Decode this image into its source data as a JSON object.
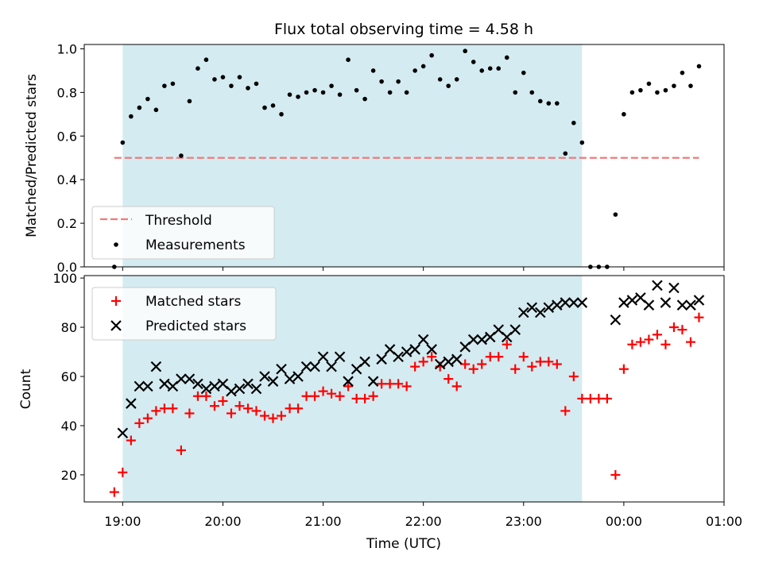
{
  "title": "Flux total observing time = 4.58 h",
  "colors": {
    "shade": "#d4ebf1",
    "threshold": "#f27a7a",
    "measurement": "#000000",
    "matched": "#ff0000",
    "predicted": "#000000"
  },
  "legend_top": {
    "threshold": "Threshold",
    "measurements": "Measurements"
  },
  "legend_bottom": {
    "matched": "Matched stars",
    "predicted": "Predicted stars"
  },
  "chart_data": [
    {
      "type": "scatter",
      "ylabel": "Matched/Predicted stars",
      "ylim": [
        0,
        1.02
      ],
      "yticks": [
        0.0,
        0.2,
        0.4,
        0.6,
        0.8,
        1.0
      ],
      "yticklabels": [
        "0.0",
        "0.2",
        "0.4",
        "0.6",
        "0.8",
        "1.0"
      ],
      "shaded_span": [
        "19:00",
        "23:35"
      ],
      "threshold": {
        "value": 0.5,
        "x_range": [
          "18:55",
          "00:45"
        ]
      },
      "legend_position": "lower-left",
      "series": [
        {
          "name": "Measurements",
          "marker": "dot",
          "x": [
            "18:55",
            "19:00",
            "19:05",
            "19:10",
            "19:15",
            "19:20",
            "19:25",
            "19:30",
            "19:35",
            "19:40",
            "19:45",
            "19:50",
            "19:55",
            "20:00",
            "20:05",
            "20:10",
            "20:15",
            "20:20",
            "20:25",
            "20:30",
            "20:35",
            "20:40",
            "20:45",
            "20:50",
            "20:55",
            "21:00",
            "21:05",
            "21:10",
            "21:15",
            "21:20",
            "21:25",
            "21:30",
            "21:35",
            "21:40",
            "21:45",
            "21:50",
            "21:55",
            "22:00",
            "22:05",
            "22:10",
            "22:15",
            "22:20",
            "22:25",
            "22:30",
            "22:35",
            "22:40",
            "22:45",
            "22:50",
            "22:55",
            "23:00",
            "23:05",
            "23:10",
            "23:15",
            "23:20",
            "23:25",
            "23:30",
            "23:35",
            "23:40",
            "23:45",
            "23:50",
            "23:55",
            "00:00",
            "00:05",
            "00:10",
            "00:15",
            "00:20",
            "00:25",
            "00:30",
            "00:35",
            "00:40",
            "00:45"
          ],
          "y": [
            0.0,
            0.57,
            0.69,
            0.73,
            0.77,
            0.72,
            0.83,
            0.84,
            0.51,
            0.76,
            0.91,
            0.95,
            0.86,
            0.87,
            0.83,
            0.87,
            0.82,
            0.84,
            0.73,
            0.74,
            0.7,
            0.79,
            0.78,
            0.8,
            0.81,
            0.8,
            0.83,
            0.79,
            0.95,
            0.81,
            0.77,
            0.9,
            0.85,
            0.8,
            0.85,
            0.8,
            0.9,
            0.92,
            0.97,
            0.86,
            0.83,
            0.86,
            0.99,
            0.94,
            0.9,
            0.91,
            0.91,
            0.96,
            0.8,
            0.89,
            0.8,
            0.76,
            0.75,
            0.75,
            0.52,
            0.66,
            0.57,
            0.0,
            0.0,
            0.0,
            0.24,
            0.7,
            0.8,
            0.81,
            0.84,
            0.8,
            0.81,
            0.83,
            0.89,
            0.83,
            0.92
          ]
        }
      ]
    },
    {
      "type": "scatter",
      "xlabel": "Time (UTC)",
      "ylabel": "Count",
      "ylim": [
        9,
        101
      ],
      "yticks": [
        20,
        40,
        60,
        80,
        100
      ],
      "yticklabels": [
        "20",
        "40",
        "60",
        "80",
        "100"
      ],
      "xticks": [
        "19:00",
        "20:00",
        "21:00",
        "22:00",
        "23:00",
        "00:00",
        "01:00"
      ],
      "xlim": [
        "18:37",
        "01:00"
      ],
      "shaded_span": [
        "19:00",
        "23:35"
      ],
      "legend_position": "upper-left",
      "series": [
        {
          "name": "Matched stars",
          "marker": "plus",
          "x": [
            "18:55",
            "19:00",
            "19:05",
            "19:10",
            "19:15",
            "19:20",
            "19:25",
            "19:30",
            "19:35",
            "19:40",
            "19:45",
            "19:50",
            "19:55",
            "20:00",
            "20:05",
            "20:10",
            "20:15",
            "20:20",
            "20:25",
            "20:30",
            "20:35",
            "20:40",
            "20:45",
            "20:50",
            "20:55",
            "21:00",
            "21:05",
            "21:10",
            "21:15",
            "21:20",
            "21:25",
            "21:30",
            "21:35",
            "21:40",
            "21:45",
            "21:50",
            "21:55",
            "22:00",
            "22:05",
            "22:10",
            "22:15",
            "22:20",
            "22:25",
            "22:30",
            "22:35",
            "22:40",
            "22:45",
            "22:50",
            "22:55",
            "23:00",
            "23:05",
            "23:10",
            "23:15",
            "23:20",
            "23:25",
            "23:30",
            "23:35",
            "23:40",
            "23:45",
            "23:50",
            "23:55",
            "00:00",
            "00:05",
            "00:10",
            "00:15",
            "00:20",
            "00:25",
            "00:30",
            "00:35",
            "00:40",
            "00:45"
          ],
          "y": [
            13,
            21,
            34,
            41,
            43,
            46,
            47,
            47,
            30,
            45,
            52,
            52,
            48,
            50,
            45,
            48,
            47,
            46,
            44,
            43,
            44,
            47,
            47,
            52,
            52,
            54,
            53,
            52,
            56,
            51,
            51,
            52,
            57,
            57,
            57,
            56,
            64,
            66,
            68,
            64,
            59,
            56,
            65,
            63,
            65,
            68,
            68,
            73,
            63,
            68,
            64,
            66,
            66,
            65,
            46,
            60,
            51,
            51,
            51,
            51,
            20,
            63,
            73,
            74,
            75,
            77,
            73,
            80,
            79,
            74,
            84
          ]
        },
        {
          "name": "Predicted stars",
          "marker": "x",
          "x": [
            "19:00",
            "19:05",
            "19:10",
            "19:15",
            "19:20",
            "19:25",
            "19:30",
            "19:35",
            "19:40",
            "19:45",
            "19:50",
            "19:55",
            "20:00",
            "20:05",
            "20:10",
            "20:15",
            "20:20",
            "20:25",
            "20:30",
            "20:35",
            "20:40",
            "20:45",
            "20:50",
            "20:55",
            "21:00",
            "21:05",
            "21:10",
            "21:15",
            "21:20",
            "21:25",
            "21:30",
            "21:35",
            "21:40",
            "21:45",
            "21:50",
            "21:55",
            "22:00",
            "22:05",
            "22:10",
            "22:15",
            "22:20",
            "22:25",
            "22:30",
            "22:35",
            "22:40",
            "22:45",
            "22:50",
            "22:55",
            "23:00",
            "23:05",
            "23:10",
            "23:15",
            "23:20",
            "23:25",
            "23:30",
            "23:35",
            "23:55",
            "00:00",
            "00:05",
            "00:10",
            "00:15",
            "00:20",
            "00:25",
            "00:30",
            "00:35",
            "00:40",
            "00:45"
          ],
          "y": [
            37,
            49,
            56,
            56,
            64,
            57,
            56,
            59,
            59,
            57,
            55,
            56,
            57,
            54,
            55,
            57,
            55,
            60,
            58,
            63,
            59,
            60,
            64,
            64,
            68,
            64,
            68,
            58,
            63,
            66,
            58,
            67,
            71,
            68,
            70,
            71,
            75,
            71,
            65,
            66,
            67,
            72,
            75,
            75,
            76,
            79,
            76,
            79,
            86,
            88,
            86,
            88,
            89,
            90,
            90,
            90,
            83,
            90,
            91,
            92,
            89,
            97,
            90,
            96,
            89,
            89,
            91
          ]
        }
      ]
    }
  ]
}
